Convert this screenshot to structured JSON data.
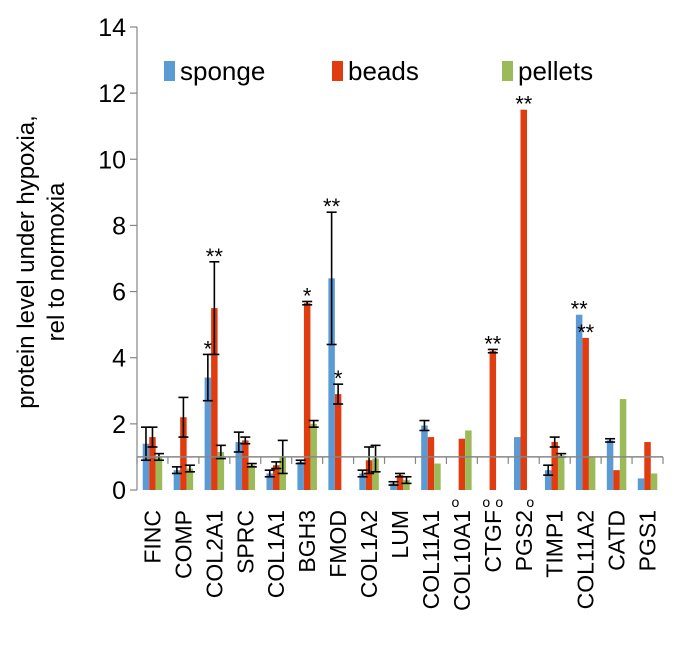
{
  "chart_data": {
    "type": "bar",
    "ylabel_lines": [
      "protein level under hypoxia,",
      "rel to normoxia"
    ],
    "ylim": [
      0,
      14
    ],
    "yticks": [
      "0",
      "2",
      "4",
      "6",
      "8",
      "10",
      "12",
      "14"
    ],
    "reference_line": 1,
    "legend_position": "top",
    "categories": [
      "FINC",
      "COMP",
      "COL2A1",
      "SPRC",
      "COL1A1",
      "BGH3",
      "FMOD",
      "COL1A2",
      "LUM",
      "COL11A1",
      "COL10A1",
      "CTGF",
      "PGS2",
      "TIMP1",
      "COL11A2",
      "CATD",
      "PGS1"
    ],
    "series": [
      {
        "name": "sponge",
        "color": "#5B9BD5",
        "values": [
          1.4,
          0.6,
          3.4,
          1.45,
          0.5,
          0.85,
          6.4,
          0.5,
          0.2,
          1.95,
          0.0,
          0.0,
          1.6,
          0.6,
          5.3,
          1.5,
          0.35
        ],
        "errors": [
          0.5,
          0.1,
          0.7,
          0.3,
          0.1,
          0.05,
          2.0,
          0.1,
          0.05,
          0.15,
          0.0,
          0.0,
          0.0,
          0.15,
          0.0,
          0.05,
          0.0
        ]
      },
      {
        "name": "beads",
        "color": "#E03C10",
        "values": [
          1.6,
          2.2,
          5.5,
          1.5,
          0.75,
          5.65,
          2.9,
          0.9,
          0.45,
          1.6,
          1.55,
          4.2,
          11.5,
          1.45,
          4.6,
          0.6,
          1.45
        ],
        "errors": [
          0.3,
          0.6,
          1.4,
          0.1,
          0.1,
          0.05,
          0.3,
          0.4,
          0.05,
          0.0,
          0.0,
          0.05,
          0.0,
          0.15,
          0.0,
          0.0,
          0.0
        ]
      },
      {
        "name": "pellets",
        "color": "#9BBB59",
        "values": [
          1.0,
          0.65,
          1.15,
          0.75,
          1.0,
          2.0,
          null,
          0.95,
          0.3,
          0.8,
          1.8,
          0.0,
          0.0,
          1.05,
          1.0,
          2.75,
          0.5
        ],
        "errors": [
          0.1,
          0.1,
          0.2,
          0.05,
          0.5,
          0.1,
          0.0,
          0.4,
          0.1,
          0.0,
          0.0,
          0.0,
          0.0,
          0.05,
          0.0,
          0.0,
          0.0
        ]
      }
    ],
    "annotations": [
      {
        "category": "COL2A1",
        "series": "sponge",
        "text": "*"
      },
      {
        "category": "COL2A1",
        "series": "beads",
        "text": "**"
      },
      {
        "category": "BGH3",
        "series": "beads",
        "text": "*"
      },
      {
        "category": "FMOD",
        "series": "sponge",
        "text": "**"
      },
      {
        "category": "FMOD",
        "series": "beads",
        "text": "*"
      },
      {
        "category": "CTGF",
        "series": "beads",
        "text": "**"
      },
      {
        "category": "PGS2",
        "series": "beads",
        "text": "**"
      },
      {
        "category": "COL11A2",
        "series": "sponge",
        "text": "**"
      },
      {
        "category": "COL11A2",
        "series": "beads",
        "text": "**"
      },
      {
        "category": "COL10A1",
        "series": "sponge",
        "text": "o"
      },
      {
        "category": "CTGF",
        "series": "sponge",
        "text": "o"
      },
      {
        "category": "CTGF",
        "series": "pellets",
        "text": "o"
      },
      {
        "category": "PGS2",
        "series": "pellets",
        "text": "o"
      }
    ]
  }
}
